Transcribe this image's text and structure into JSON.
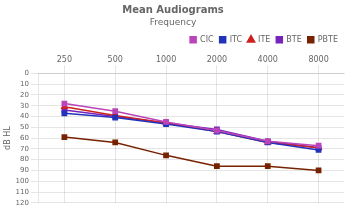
{
  "chart_data": {
    "type": "line",
    "title": "Mean Audiograms",
    "subtitle": "Frequency",
    "y_label": "dB HL",
    "categories": [
      "250",
      "500",
      "1000",
      "2000",
      "4000",
      "8000"
    ],
    "series": [
      {
        "name": "CIC",
        "color": "#bb44bb",
        "marker": "square",
        "values": [
          28,
          35,
          45,
          53,
          63,
          67
        ]
      },
      {
        "name": "ITC",
        "color": "#2233bb",
        "marker": "square",
        "values": [
          37,
          41,
          47,
          54,
          64,
          71
        ]
      },
      {
        "name": "ITE",
        "color": "#cc2222",
        "marker": "triangle",
        "values": [
          31,
          39,
          46,
          54,
          64,
          69
        ]
      },
      {
        "name": "BTE",
        "color": "#7722bb",
        "marker": "square",
        "values": [
          34,
          40,
          46,
          52,
          63,
          69
        ]
      },
      {
        "name": "PBTE",
        "color": "#772200",
        "marker": "square",
        "values": [
          59,
          64,
          76,
          86,
          86,
          90
        ]
      }
    ],
    "ylim": [
      120,
      0
    ],
    "yticks": [
      0,
      10,
      20,
      30,
      40,
      50,
      60,
      70,
      80,
      90,
      100,
      110,
      120
    ],
    "grid": true,
    "legend": "upper right"
  }
}
